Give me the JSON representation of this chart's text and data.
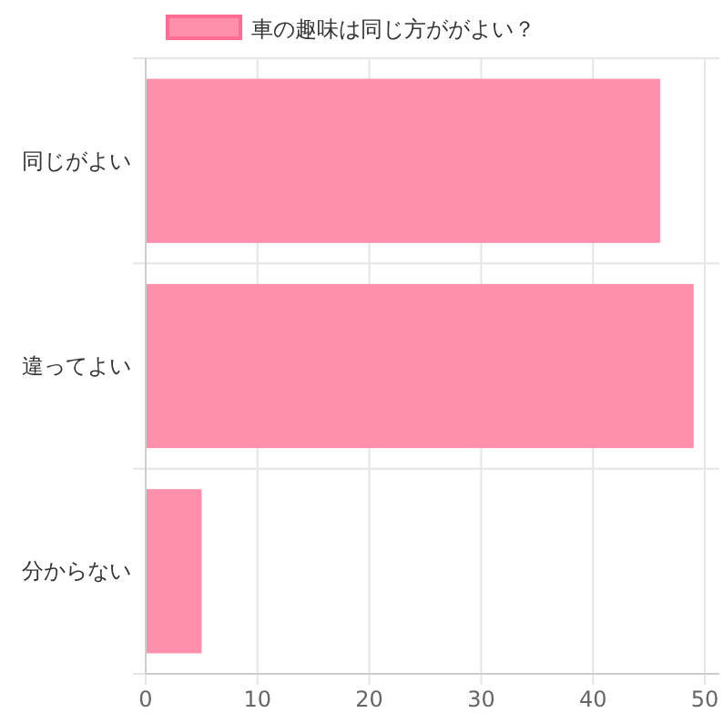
{
  "chart_data": {
    "type": "bar",
    "orientation": "horizontal",
    "categories": [
      "同じがよい",
      "違ってよい",
      "分からない"
    ],
    "series": [
      {
        "name": "車の趣味は同じ方ががよい？",
        "color": "#ff8fab",
        "values": [
          46,
          49,
          5
        ]
      }
    ],
    "xlim": [
      0,
      51.3
    ],
    "xticks": [
      0,
      10,
      20,
      30,
      40,
      50
    ],
    "grid": true,
    "legend": "top"
  }
}
